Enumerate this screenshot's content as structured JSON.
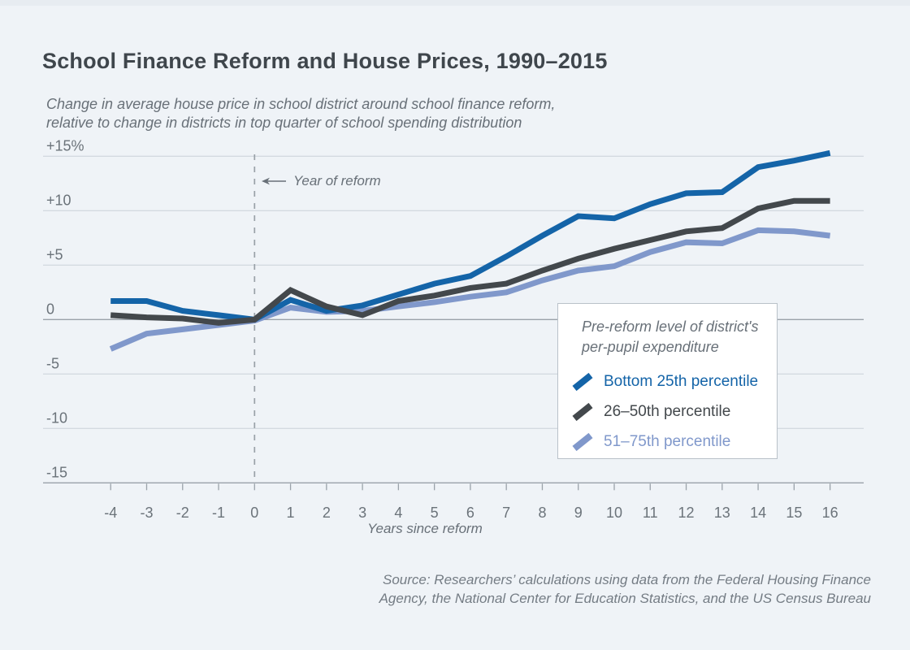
{
  "page": {
    "source": [
      "Source: Researchers’ calculations using data from the Federal Housing Finance",
      "Agency, the National Center for Education Statistics, and the US Census Bureau"
    ]
  },
  "chart_data": {
    "type": "line",
    "title": "School Finance Reform and House Prices, 1990–2015",
    "subtitle": [
      "Change in average house price in school district around school finance reform,",
      "relative to change in districts in top quarter of school spending distribution"
    ],
    "xlabel": "Years since reform",
    "ylabel": "",
    "xlim": [
      -4,
      16
    ],
    "ylim": [
      -15,
      15
    ],
    "grid": "horizontal",
    "legend": {
      "position": "middle-right",
      "title": [
        "Pre-reform level of district's",
        "per-pupil expenditure"
      ]
    },
    "annotation": {
      "x": 0,
      "label": "Year of reform"
    },
    "x": [
      -4,
      -3,
      -2,
      -1,
      0,
      1,
      2,
      3,
      4,
      5,
      6,
      7,
      8,
      9,
      10,
      11,
      12,
      13,
      14,
      15,
      16
    ],
    "x_ticks": [
      -4,
      -3,
      -2,
      -1,
      0,
      1,
      2,
      3,
      4,
      5,
      6,
      7,
      8,
      9,
      10,
      11,
      12,
      13,
      14,
      15,
      16
    ],
    "y_ticks": [
      {
        "value": 15,
        "label": "+15%"
      },
      {
        "value": 10,
        "label": "+10"
      },
      {
        "value": 5,
        "label": "+5"
      },
      {
        "value": 0,
        "label": "0"
      },
      {
        "value": -5,
        "label": "-5"
      },
      {
        "value": -10,
        "label": "-10"
      },
      {
        "value": -15,
        "label": "-15"
      }
    ],
    "series": [
      {
        "name": "Bottom 25th percentile",
        "color": "#1464a8",
        "values": [
          1.7,
          1.7,
          0.8,
          0.4,
          0,
          1.8,
          0.8,
          1.3,
          2.3,
          3.3,
          4.0,
          5.8,
          7.7,
          9.5,
          9.3,
          10.6,
          11.6,
          11.7,
          14.0,
          14.6,
          15.3
        ]
      },
      {
        "name": "26–50th percentile",
        "color": "#43484c",
        "values": [
          0.4,
          0.2,
          0.1,
          -0.3,
          0,
          2.7,
          1.2,
          0.4,
          1.7,
          2.2,
          2.9,
          3.3,
          4.5,
          5.6,
          6.5,
          7.3,
          8.1,
          8.4,
          10.2,
          10.9,
          10.9
        ]
      },
      {
        "name": "51–75th percentile",
        "color": "#8098cb",
        "values": [
          -2.7,
          -1.3,
          -0.9,
          -0.5,
          -0.1,
          1.1,
          0.7,
          0.8,
          1.2,
          1.6,
          2.1,
          2.5,
          3.6,
          4.5,
          4.9,
          6.2,
          7.1,
          7.0,
          8.2,
          8.1,
          7.7
        ]
      }
    ]
  }
}
